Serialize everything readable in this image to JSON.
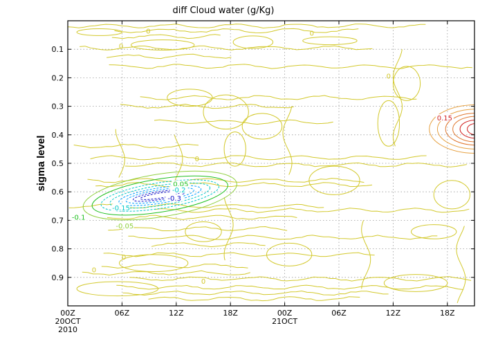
{
  "chart_data": {
    "type": "contour",
    "title": "diff Cloud water (g/Kg)",
    "ylabel": "sigma level",
    "ylim": [
      0,
      1
    ],
    "y_axis_inverted": true,
    "y_ticks": [
      0.1,
      0.2,
      0.3,
      0.4,
      0.5,
      0.6,
      0.7,
      0.8,
      0.9
    ],
    "y_tick_labels": [
      "0.1",
      "0.2",
      "0.3",
      "0.4",
      "0.5",
      "0.6",
      "0.7",
      "0.8",
      "0.9"
    ],
    "x_ticks": [
      {
        "hour": 0,
        "label": "00Z",
        "sub1": "20OCT",
        "sub2": "2010"
      },
      {
        "hour": 6,
        "label": "06Z",
        "sub1": "",
        "sub2": ""
      },
      {
        "hour": 12,
        "label": "12Z",
        "sub1": "",
        "sub2": ""
      },
      {
        "hour": 18,
        "label": "18Z",
        "sub1": "",
        "sub2": ""
      },
      {
        "hour": 24,
        "label": "00Z",
        "sub1": "21OCT",
        "sub2": ""
      },
      {
        "hour": 30,
        "label": "06Z",
        "sub1": "",
        "sub2": ""
      },
      {
        "hour": 36,
        "label": "12Z",
        "sub1": "",
        "sub2": ""
      },
      {
        "hour": 42,
        "label": "18Z",
        "sub1": "",
        "sub2": ""
      }
    ],
    "xlim_hours": [
      0,
      45
    ],
    "grid": "dotted",
    "contour_levels": [
      -0.3,
      -0.25,
      -0.2,
      -0.15,
      -0.1,
      -0.05,
      0,
      0.05,
      0.1,
      0.15
    ],
    "level_colors": {
      "neg_deep": "#1010c8",
      "neg_mid": "#00a0ff",
      "neg_light": "#00c8c8",
      "neg_outer": "#20c020",
      "neg_outermost": "#90d040",
      "zero": "#d2c82a",
      "pos_light": "#e6a040",
      "pos_mid": "#e07830",
      "pos_deep": "#d02020"
    },
    "features": {
      "negative_cloud": {
        "center_hour": 10.2,
        "center_sigma": 0.613,
        "labels": [
          {
            "hour": 12.5,
            "sigma": 0.577,
            "text": "0.05",
            "color": "#20c020"
          },
          {
            "hour": 12.3,
            "sigma": 0.597,
            "text": "-0.2",
            "color": "#00c8c8"
          },
          {
            "hour": 11.8,
            "sigma": 0.626,
            "text": "-0.3",
            "color": "#1010c8"
          },
          {
            "hour": 5.9,
            "sigma": 0.66,
            "text": "-0.15",
            "color": "#00c8c8"
          },
          {
            "hour": 1.2,
            "sigma": 0.693,
            "text": "-0.1",
            "color": "#20c020"
          },
          {
            "hour": 6.3,
            "sigma": 0.723,
            "text": "-0.05",
            "color": "#90d040"
          }
        ]
      },
      "positive_cloud": {
        "center_hour": 45.2,
        "center_sigma": 0.38,
        "labels": [
          {
            "hour": 41.7,
            "sigma": 0.345,
            "text": "0.15",
            "color": "#d02020"
          }
        ]
      },
      "zero_labels": [
        {
          "hour": 8.9,
          "sigma": 0.038,
          "text": "0"
        },
        {
          "hour": 27.0,
          "sigma": 0.045,
          "text": "0"
        },
        {
          "hour": 5.9,
          "sigma": 0.09,
          "text": "0"
        },
        {
          "hour": 35.5,
          "sigma": 0.195,
          "text": "0"
        },
        {
          "hour": 14.3,
          "sigma": 0.485,
          "text": "0"
        },
        {
          "hour": 6.2,
          "sigma": 0.83,
          "text": "0"
        },
        {
          "hour": 2.9,
          "sigma": 0.875,
          "text": "0"
        },
        {
          "hour": 15.0,
          "sigma": 0.915,
          "text": "0"
        }
      ]
    }
  }
}
